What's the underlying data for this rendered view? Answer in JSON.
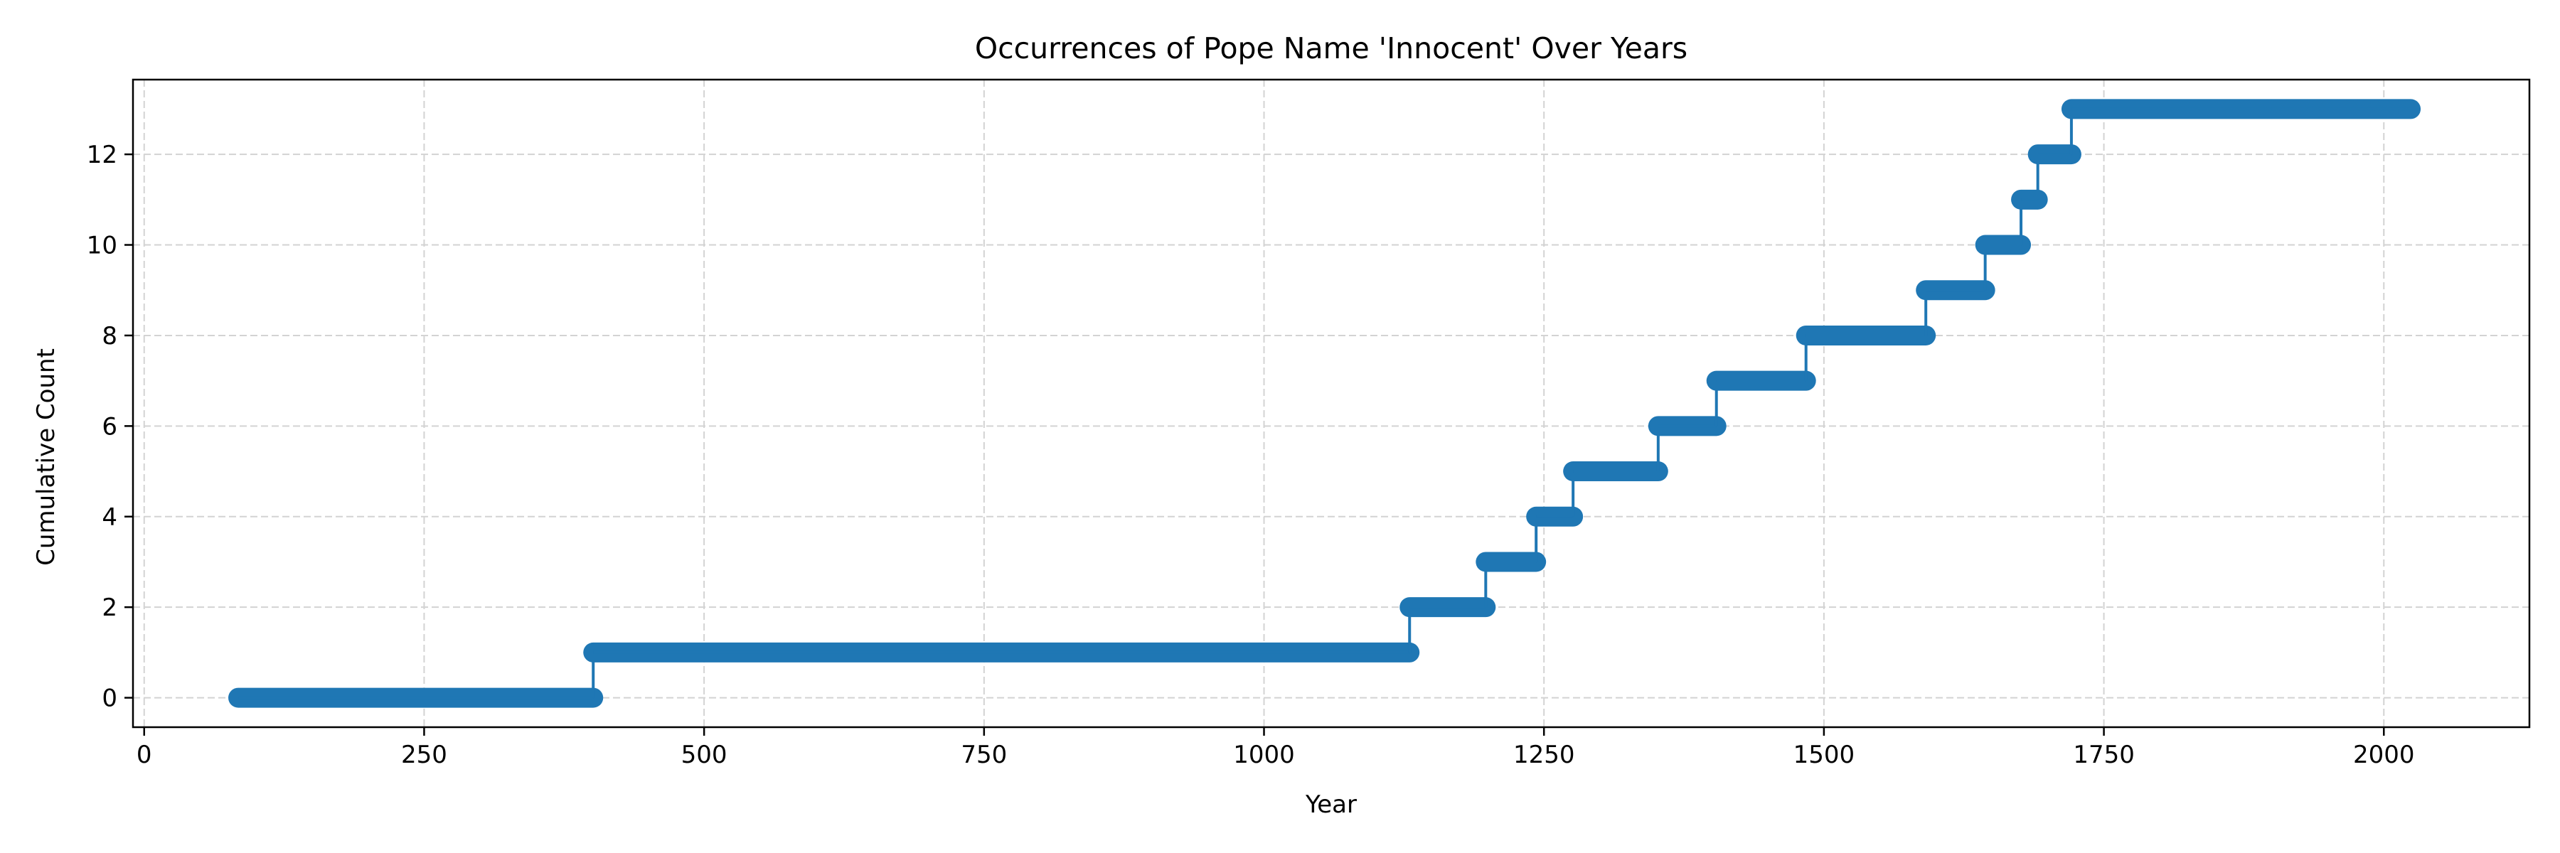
{
  "chart_data": {
    "type": "line",
    "style": "step-post",
    "title": "Occurrences of Pope Name 'Innocent' Over Years",
    "xlabel": "Year",
    "ylabel": "Cumulative Count",
    "xlim": [
      -10,
      2130
    ],
    "ylim": [
      -0.65,
      13.65
    ],
    "xticks": [
      0,
      250,
      500,
      750,
      1000,
      1250,
      1500,
      1750,
      2000
    ],
    "yticks": [
      0,
      2,
      4,
      6,
      8,
      10,
      12
    ],
    "grid": true,
    "legend": "none",
    "color": "#1f77b4",
    "series": [
      {
        "steps": [
          {
            "x_start": 84,
            "x_end": 401,
            "y": 0
          },
          {
            "x_start": 401,
            "x_end": 1130,
            "y": 1
          },
          {
            "x_start": 1130,
            "x_end": 1198,
            "y": 2
          },
          {
            "x_start": 1198,
            "x_end": 1243,
            "y": 3
          },
          {
            "x_start": 1243,
            "x_end": 1276,
            "y": 4
          },
          {
            "x_start": 1276,
            "x_end": 1352,
            "y": 5
          },
          {
            "x_start": 1352,
            "x_end": 1404,
            "y": 6
          },
          {
            "x_start": 1404,
            "x_end": 1484,
            "y": 7
          },
          {
            "x_start": 1484,
            "x_end": 1591,
            "y": 8
          },
          {
            "x_start": 1591,
            "x_end": 1644,
            "y": 9
          },
          {
            "x_start": 1644,
            "x_end": 1676,
            "y": 10
          },
          {
            "x_start": 1676,
            "x_end": 1691,
            "y": 11
          },
          {
            "x_start": 1691,
            "x_end": 1721,
            "y": 12
          },
          {
            "x_start": 1721,
            "x_end": 2024,
            "y": 13
          }
        ]
      }
    ]
  }
}
